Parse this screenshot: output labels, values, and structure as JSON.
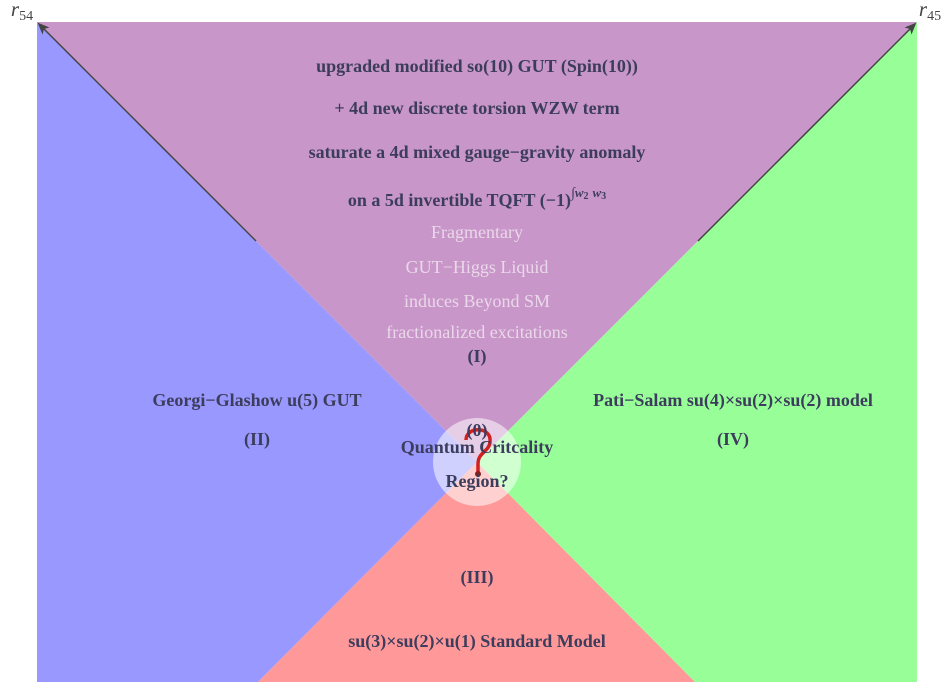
{
  "axes": {
    "left": {
      "symbol": "r",
      "subscript": "54"
    },
    "right": {
      "symbol": "r",
      "subscript": "45"
    }
  },
  "regions": {
    "top": {
      "lines": [
        "upgraded modified so(10) GUT (Spin(10))",
        "+ 4d new discrete torsion WZW term",
        "saturate a 4d mixed gauge−gravity anomaly",
        "on a 5d invertible TQFT (−1)"
      ],
      "superscript": {
        "integral": "∫",
        "terms": [
          {
            "symbol": "w",
            "subscript": "2"
          },
          {
            "symbol": "w",
            "subscript": "3"
          }
        ]
      },
      "faded_lines": [
        "Fragmentary",
        "GUT−Higgs Liquid",
        "induces Beyond SM",
        "fractionalized excitations"
      ],
      "label": "(I)"
    },
    "left": {
      "name": "Georgi−Glashow u(5) GUT",
      "label": "(II)"
    },
    "right": {
      "name": "Pati−Salam su(4)×su(2)×su(2) model",
      "label": "(IV)"
    },
    "bottom": {
      "label": "(III)",
      "name": "su(3)×su(2)×u(1) Standard Model"
    },
    "center": {
      "label": "(0)",
      "lines": [
        "Quantum Critcality",
        "Region?"
      ]
    }
  }
}
